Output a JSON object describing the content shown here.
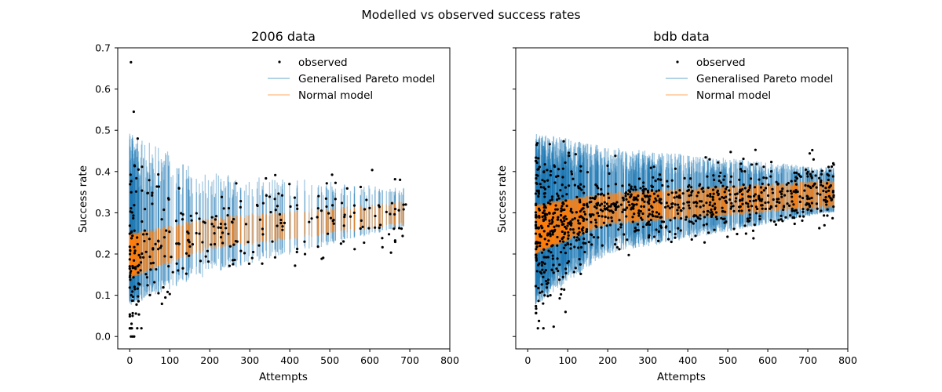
{
  "suptitle": "Modelled vs observed success rates",
  "colors": {
    "observed": "#000000",
    "pareto": "#1f77b4",
    "normal": "#ff7f0e"
  },
  "chart_data": [
    {
      "type": "scatter",
      "title": "2006 data",
      "xlabel": "Attempts",
      "ylabel": "Success rate",
      "xlim": [
        -30,
        800
      ],
      "ylim": [
        -0.03,
        0.7
      ],
      "xticks": [
        "0",
        "100",
        "200",
        "300",
        "400",
        "500",
        "600",
        "700",
        "800"
      ],
      "yticks": [
        "0.0",
        "0.1",
        "0.2",
        "0.3",
        "0.4",
        "0.5",
        "0.6",
        "0.7"
      ],
      "legend": {
        "placement": "top-right",
        "entries": [
          "observed",
          "Generalised Pareto model",
          "Normal model"
        ]
      },
      "grid": false,
      "x_range_observed": [
        0,
        695
      ],
      "notable_points": [
        {
          "x": 3,
          "y": 0.665
        },
        {
          "x": 10,
          "y": 0.545
        },
        {
          "x": 12,
          "y": 0.415
        },
        {
          "x": 3,
          "y": 0.0
        },
        {
          "x": 7,
          "y": 0.0
        },
        {
          "x": 11,
          "y": 0.0
        },
        {
          "x": 100,
          "y": 0.103
        },
        {
          "x": 690,
          "y": 0.32
        }
      ],
      "series": [
        {
          "name": "observed",
          "trend_y_at_x": [
            [
              0,
              0.2
            ],
            [
              200,
              0.25
            ],
            [
              400,
              0.28
            ],
            [
              700,
              0.3
            ]
          ],
          "spread": 0.05,
          "n_points": 260
        },
        {
          "name": "Generalised Pareto model",
          "band_low_at_x": [
            [
              0,
              0.075
            ],
            [
              200,
              0.15
            ],
            [
              700,
              0.27
            ]
          ],
          "band_high_at_x": [
            [
              0,
              0.495
            ],
            [
              200,
              0.4
            ],
            [
              700,
              0.36
            ]
          ]
        },
        {
          "name": "Normal model",
          "band_low_at_x": [
            [
              0,
              0.14
            ],
            [
              200,
              0.21
            ],
            [
              700,
              0.27
            ]
          ],
          "band_high_at_x": [
            [
              0,
              0.25
            ],
            [
              200,
              0.29
            ],
            [
              700,
              0.33
            ]
          ]
        }
      ]
    },
    {
      "type": "scatter",
      "title": "bdb data",
      "xlabel": "Attempts",
      "ylabel": "Success rate",
      "xlim": [
        -30,
        800
      ],
      "ylim": [
        -0.03,
        0.7
      ],
      "xticks": [
        "0",
        "100",
        "200",
        "300",
        "400",
        "500",
        "600",
        "700",
        "800"
      ],
      "yticks": [
        "0.0",
        "0.1",
        "0.2",
        "0.3",
        "0.4",
        "0.5",
        "0.6",
        "0.7"
      ],
      "legend": {
        "placement": "top-right",
        "entries": [
          "observed",
          "Generalised Pareto model",
          "Normal model"
        ]
      },
      "grid": false,
      "x_range_observed": [
        20,
        765
      ],
      "series": [
        {
          "name": "observed",
          "trend_y_at_x": [
            [
              20,
              0.26
            ],
            [
              200,
              0.31
            ],
            [
              500,
              0.33
            ],
            [
              760,
              0.35
            ]
          ],
          "spread": 0.04,
          "n_points": 900
        },
        {
          "name": "Generalised Pareto model",
          "band_low_at_x": [
            [
              20,
              0.075
            ],
            [
              200,
              0.2
            ],
            [
              750,
              0.3
            ]
          ],
          "band_high_at_x": [
            [
              20,
              0.495
            ],
            [
              200,
              0.46
            ],
            [
              750,
              0.41
            ]
          ]
        },
        {
          "name": "Normal model",
          "band_low_at_x": [
            [
              20,
              0.2
            ],
            [
              200,
              0.27
            ],
            [
              750,
              0.31
            ]
          ],
          "band_high_at_x": [
            [
              20,
              0.32
            ],
            [
              200,
              0.35
            ],
            [
              750,
              0.38
            ]
          ]
        }
      ]
    }
  ]
}
